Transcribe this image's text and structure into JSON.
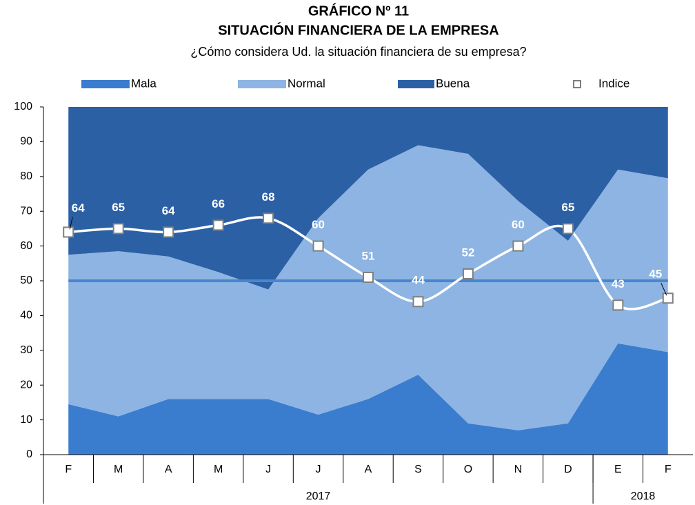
{
  "chart_data": {
    "type": "stacked-area",
    "title": "GRÁFICO Nº 11",
    "subtitle": "SITUACIÓN FINANCIERA DE LA EMPRESA",
    "question": "¿Cómo considera Ud. la situación financiera de su empresa?",
    "categories": [
      "F",
      "M",
      "A",
      "M",
      "J",
      "J",
      "A",
      "S",
      "O",
      "N",
      "D",
      "E",
      "F"
    ],
    "groups": [
      {
        "label": "2017",
        "span": 11
      },
      {
        "label": "2018",
        "span": 2
      }
    ],
    "series": [
      {
        "name": "Mala",
        "color": "#3a7dce",
        "values": [
          14.5,
          11,
          16,
          16,
          16,
          11.5,
          16,
          23,
          9,
          7,
          9,
          32,
          29.5
        ]
      },
      {
        "name": "Normal",
        "color": "#8db4e2",
        "values": [
          43,
          47.5,
          41,
          36.5,
          31.5,
          56.5,
          66,
          66,
          77.5,
          66,
          52.5,
          50,
          50
        ]
      },
      {
        "name": "Buena",
        "color": "#2b60a5",
        "values": [
          42.5,
          41.5,
          43,
          47.5,
          52.5,
          32,
          18,
          11,
          13.5,
          27,
          38.5,
          18,
          20.5
        ]
      }
    ],
    "index": {
      "name": "Indice",
      "color": "#ffffff",
      "marker_color": "#7f7f7f",
      "values": [
        64,
        65,
        64,
        66,
        68,
        60,
        51,
        44,
        52,
        60,
        65,
        43,
        45
      ]
    },
    "reference_line": {
      "value": 50,
      "color": "#4a86d0"
    },
    "ylim": [
      0,
      100
    ],
    "yticks": [
      0,
      10,
      20,
      30,
      40,
      50,
      60,
      70,
      80,
      90,
      100
    ],
    "grid": false
  }
}
